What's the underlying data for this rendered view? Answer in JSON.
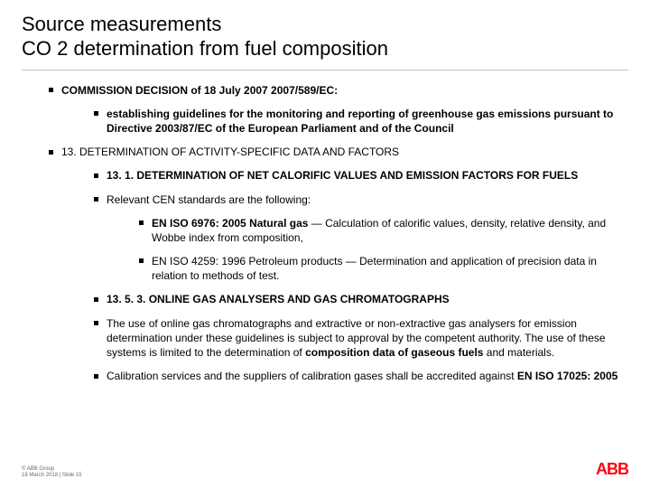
{
  "title": "Source measurements",
  "subtitle": "CO 2 determination from fuel composition",
  "items": [
    {
      "text": "COMMISSION DECISION of 18 July 2007 2007/589/EC:",
      "bold": true,
      "children": [
        {
          "text": "establishing guidelines for the monitoring and reporting of greenhouse gas emissions pursuant to Directive 2003/87/EC of the European Parliament and of the Council",
          "bold": true
        }
      ]
    },
    {
      "text": "13. DETERMINATION OF ACTIVITY-SPECIFIC DATA AND FACTORS",
      "children": [
        {
          "text": "13. 1. DETERMINATION OF NET CALORIFIC VALUES AND EMISSION FACTORS FOR FUELS",
          "bold": true
        },
        {
          "text": "Relevant CEN standards are the following:",
          "children": [
            {
              "html": "<span class=\"bold\">EN ISO 6976: 2005 Natural gas</span> — Calculation of calorific values, density, relative density, and Wobbe index from composition,"
            },
            {
              "text": "EN ISO 4259: 1996 Petroleum products — Determination and application of precision data in relation to methods of test."
            }
          ]
        },
        {
          "text": "13. 5. 3. ONLINE GAS ANALYSERS AND GAS CHROMATOGRAPHS",
          "bold": true
        },
        {
          "html": "The use of online gas chromatographs and extractive or non-extractive gas analysers for emission determination under these guidelines is subject to approval by the competent authority. The use of these systems is limited to the determination of <span class=\"bold\">composition data of gaseous fuels</span> and materials."
        },
        {
          "html": "Calibration services and the suppliers of calibration gases shall be accredited against <span class=\"bold\">EN ISO 17025: 2005</span>"
        }
      ]
    }
  ],
  "footer_line1": "© ABB Group",
  "footer_line2": "18 March 2018 | Slide 15",
  "logo_text": "ABB",
  "colors": {
    "text": "#000000",
    "divider": "#bfbfbf",
    "footer": "#6b6b6b",
    "logo": "#ff0010",
    "background": "#ffffff"
  }
}
